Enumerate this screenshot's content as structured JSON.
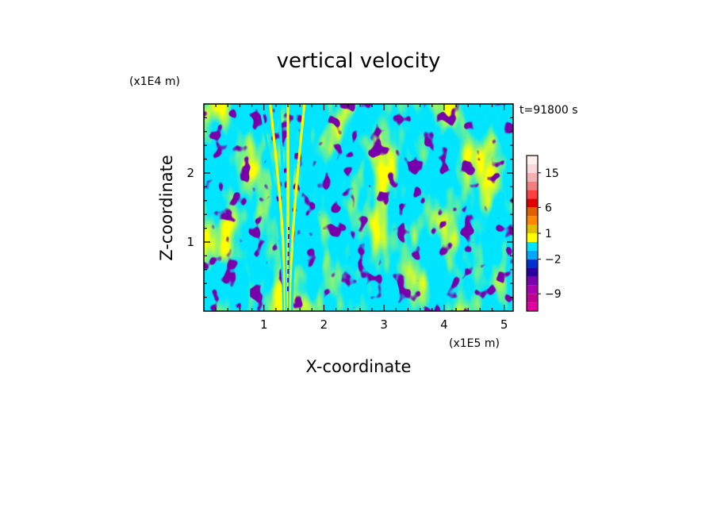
{
  "chart_data": {
    "type": "heatmap",
    "title": "vertical velocity",
    "time_label": "t=91800 s",
    "xlabel": "X-coordinate",
    "ylabel": "Z-coordinate",
    "x_scale_label": "(x1E5 m)",
    "y_scale_label": "(x1E4 m)",
    "xlim": [
      0,
      5.15
    ],
    "ylim": [
      0,
      3.0
    ],
    "x_major_ticks": [
      1,
      2,
      3,
      4,
      5
    ],
    "x_tick_labels": [
      "1",
      "2",
      "3",
      "4",
      "5"
    ],
    "y_major_ticks": [
      1,
      2
    ],
    "y_tick_labels": [
      "1",
      "2"
    ],
    "field_colors": {
      "positive": "#ffff00",
      "negative": "#00e5ff",
      "strong_negative": "#7700aa"
    },
    "colorbar": {
      "levels": [
        -12,
        -10.5,
        -9,
        -7.5,
        -6,
        -4,
        -2,
        -1,
        0,
        1,
        2,
        4,
        6,
        8,
        10,
        12.5,
        15,
        17.5,
        20
      ],
      "colors": [
        "#e000a0",
        "#c00090",
        "#aa00b0",
        "#7a00b0",
        "#2a00a0",
        "#0030d0",
        "#00a8ff",
        "#00e5ff",
        "#ffff00",
        "#e0c000",
        "#ff8800",
        "#e06000",
        "#e00000",
        "#ff4040",
        "#f08080",
        "#f4b0b0",
        "#f8d8d8",
        "#fff0f0"
      ],
      "tick_values": [
        15,
        6,
        1,
        -2,
        -9
      ],
      "tick_labels": [
        "15",
        "6",
        "1",
        "−2",
        "−9"
      ]
    }
  }
}
